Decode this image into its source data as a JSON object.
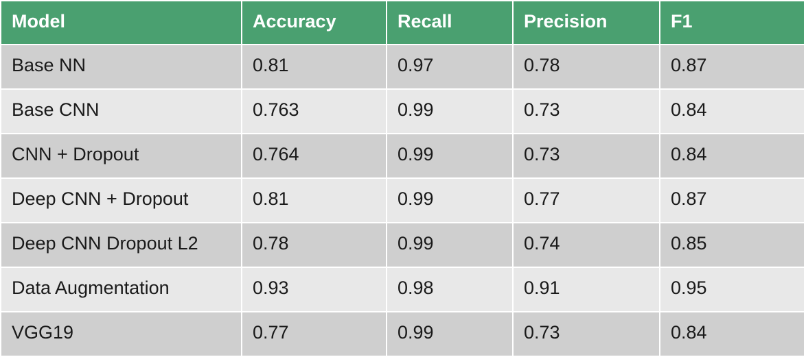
{
  "table": {
    "headers": [
      "Model",
      "Accuracy",
      "Recall",
      "Precision",
      "F1"
    ],
    "rows": [
      [
        "Base NN",
        "0.81",
        "0.97",
        "0.78",
        "0.87"
      ],
      [
        "Base CNN",
        "0.763",
        "0.99",
        "0.73",
        "0.84"
      ],
      [
        "CNN + Dropout",
        "0.764",
        "0.99",
        "0.73",
        "0.84"
      ],
      [
        "Deep CNN + Dropout",
        "0.81",
        "0.99",
        "0.77",
        "0.87"
      ],
      [
        "Deep CNN Dropout L2",
        "0.78",
        "0.99",
        "0.74",
        "0.85"
      ],
      [
        "Data Augmentation",
        "0.93",
        "0.98",
        "0.91",
        "0.95"
      ],
      [
        "VGG19",
        "0.77",
        "0.99",
        "0.73",
        "0.84"
      ]
    ]
  },
  "colors": {
    "header_bg": "#4aa070",
    "header_text": "#ffffff",
    "row_dark": "#cfcfcf",
    "row_light": "#e8e8e8",
    "cell_text": "#1a1a1a"
  }
}
